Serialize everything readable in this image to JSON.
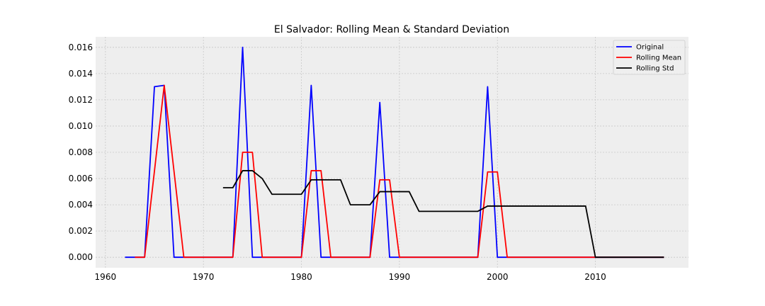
{
  "chart_data": {
    "type": "line",
    "title": "El Salvador: Rolling Mean & Standard Deviation",
    "xlabel": "",
    "ylabel": "",
    "xlim": [
      1959,
      2019.5
    ],
    "ylim": [
      -0.0008,
      0.0168
    ],
    "x_ticks": [
      1960,
      1970,
      1980,
      1990,
      2000,
      2010
    ],
    "x_tick_labels": [
      "1960",
      "1970",
      "1980",
      "1990",
      "2000",
      "2010"
    ],
    "y_ticks": [
      0,
      0.002,
      0.004,
      0.006,
      0.008,
      0.01,
      0.012,
      0.014,
      0.016
    ],
    "y_tick_labels": [
      "0.000",
      "0.002",
      "0.004",
      "0.006",
      "0.008",
      "0.010",
      "0.012",
      "0.014",
      "0.016"
    ],
    "grid": true,
    "legend_position": "top-right",
    "series": [
      {
        "name": "Original",
        "color": "#0000ff",
        "points": [
          [
            1962,
            0
          ],
          [
            1963,
            0
          ],
          [
            1964,
            0
          ],
          [
            1965,
            0.013
          ],
          [
            1966,
            0.0131
          ],
          [
            1967,
            0
          ],
          [
            1968,
            0
          ],
          [
            1969,
            0
          ],
          [
            1970,
            0
          ],
          [
            1971,
            0
          ],
          [
            1972,
            0
          ],
          [
            1973,
            0
          ],
          [
            1974,
            0.016
          ],
          [
            1975,
            0
          ],
          [
            1976,
            0
          ],
          [
            1977,
            0
          ],
          [
            1978,
            0
          ],
          [
            1979,
            0
          ],
          [
            1980,
            0
          ],
          [
            1981,
            0.0131
          ],
          [
            1982,
            0
          ],
          [
            1983,
            0
          ],
          [
            1984,
            0
          ],
          [
            1985,
            0
          ],
          [
            1986,
            0
          ],
          [
            1987,
            0
          ],
          [
            1988,
            0.0118
          ],
          [
            1989,
            0
          ],
          [
            1990,
            0
          ],
          [
            1991,
            0
          ],
          [
            1992,
            0
          ],
          [
            1993,
            0
          ],
          [
            1994,
            0
          ],
          [
            1995,
            0
          ],
          [
            1996,
            0
          ],
          [
            1997,
            0
          ],
          [
            1998,
            0
          ],
          [
            1999,
            0.013
          ],
          [
            2000,
            0
          ],
          [
            2001,
            0
          ],
          [
            2002,
            0
          ],
          [
            2003,
            0
          ],
          [
            2004,
            0
          ],
          [
            2005,
            0
          ],
          [
            2006,
            0
          ],
          [
            2007,
            0
          ],
          [
            2008,
            0
          ],
          [
            2009,
            0
          ],
          [
            2010,
            0
          ],
          [
            2011,
            0
          ],
          [
            2012,
            0
          ],
          [
            2013,
            0
          ],
          [
            2014,
            0
          ],
          [
            2015,
            0
          ],
          [
            2016,
            0
          ],
          [
            2017,
            0
          ]
        ]
      },
      {
        "name": "Rolling Mean",
        "color": "#ff0000",
        "points": [
          [
            1963,
            0
          ],
          [
            1964,
            0
          ],
          [
            1966,
            0.0131
          ],
          [
            1968,
            0
          ],
          [
            1969,
            0
          ],
          [
            1973,
            0
          ],
          [
            1974,
            0.008
          ],
          [
            1975,
            0.008
          ],
          [
            1976,
            0
          ],
          [
            1980,
            0
          ],
          [
            1981,
            0.0066
          ],
          [
            1982,
            0.0066
          ],
          [
            1983,
            0
          ],
          [
            1987,
            0
          ],
          [
            1988,
            0.0059
          ],
          [
            1989,
            0.0059
          ],
          [
            1990,
            0
          ],
          [
            1998,
            0
          ],
          [
            1999,
            0.0065
          ],
          [
            2000,
            0.0065
          ],
          [
            2001,
            0
          ],
          [
            2017,
            0
          ]
        ]
      },
      {
        "name": "Rolling Std",
        "color": "#000000",
        "points": [
          [
            1972,
            0.0053
          ],
          [
            1973,
            0.0053
          ],
          [
            1974,
            0.0066
          ],
          [
            1975,
            0.0066
          ],
          [
            1976,
            0.006
          ],
          [
            1977,
            0.0048
          ],
          [
            1978,
            0.0048
          ],
          [
            1979,
            0.0048
          ],
          [
            1980,
            0.0048
          ],
          [
            1981,
            0.0059
          ],
          [
            1982,
            0.0059
          ],
          [
            1983,
            0.0059
          ],
          [
            1984,
            0.0059
          ],
          [
            1985,
            0.004
          ],
          [
            1986,
            0.004
          ],
          [
            1987,
            0.004
          ],
          [
            1988,
            0.005
          ],
          [
            1989,
            0.005
          ],
          [
            1990,
            0.005
          ],
          [
            1991,
            0.005
          ],
          [
            1992,
            0.0035
          ],
          [
            1993,
            0.0035
          ],
          [
            1994,
            0.0035
          ],
          [
            1995,
            0.0035
          ],
          [
            1996,
            0.0035
          ],
          [
            1997,
            0.0035
          ],
          [
            1998,
            0.0035
          ],
          [
            1999,
            0.0039
          ],
          [
            2000,
            0.0039
          ],
          [
            2001,
            0.0039
          ],
          [
            2002,
            0.0039
          ],
          [
            2003,
            0.0039
          ],
          [
            2004,
            0.0039
          ],
          [
            2005,
            0.0039
          ],
          [
            2006,
            0.0039
          ],
          [
            2007,
            0.0039
          ],
          [
            2008,
            0.0039
          ],
          [
            2009,
            0.0039
          ],
          [
            2010,
            0
          ],
          [
            2011,
            0
          ],
          [
            2012,
            0
          ],
          [
            2013,
            0
          ],
          [
            2014,
            0
          ],
          [
            2015,
            0
          ],
          [
            2016,
            0
          ],
          [
            2017,
            0
          ]
        ]
      }
    ]
  }
}
